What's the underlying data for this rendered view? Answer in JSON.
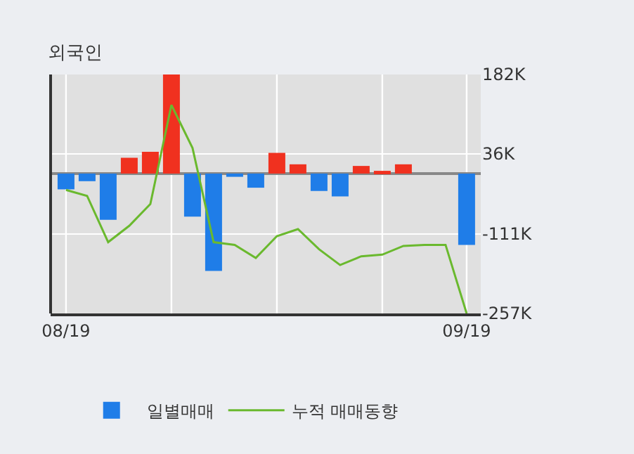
{
  "chart_data": {
    "type": "bar",
    "title": "외국인",
    "categories": [
      "08/19",
      null,
      null,
      null,
      null,
      null,
      null,
      null,
      null,
      null,
      null,
      null,
      null,
      null,
      null,
      null,
      null,
      null,
      null,
      "09/19"
    ],
    "series": [
      {
        "name": "일별매매",
        "colors": [
          "#1f7de8",
          "#1f7de8",
          "#1f7de8",
          "#f0311f",
          "#f0311f",
          "#f0311f",
          "#1f7de8",
          "#1f7de8",
          "#1f7de8",
          "#1f7de8",
          "#f0311f",
          "#f0311f",
          "#1f7de8",
          "#1f7de8",
          "#f0311f",
          "#f0311f",
          "#f0311f",
          "#f0311f",
          "#f0311f",
          "#1f7de8"
        ],
        "values": [
          -29,
          -14,
          -85,
          29,
          40,
          182,
          -79,
          -179,
          -6,
          -26,
          38,
          17,
          -32,
          -42,
          14,
          5,
          17,
          0,
          0,
          -131
        ]
      },
      {
        "name": "누적 매매동향",
        "type": "line",
        "color": "#6ab92e",
        "values": [
          -30,
          -41,
          -126,
          -96,
          -56,
          126,
          47,
          -126,
          -131,
          -155,
          -115,
          -102,
          -139,
          -168,
          -152,
          -149,
          -133,
          -131,
          -131,
          -257
        ]
      }
    ],
    "ylim": [
      -257,
      182
    ],
    "yticks": [
      {
        "value": 182,
        "label": "182K"
      },
      {
        "value": 36,
        "label": "36K"
      },
      {
        "value": -111,
        "label": "-111K"
      },
      {
        "value": -257,
        "label": "-257K"
      }
    ],
    "grid": true,
    "legend": "bottom"
  }
}
